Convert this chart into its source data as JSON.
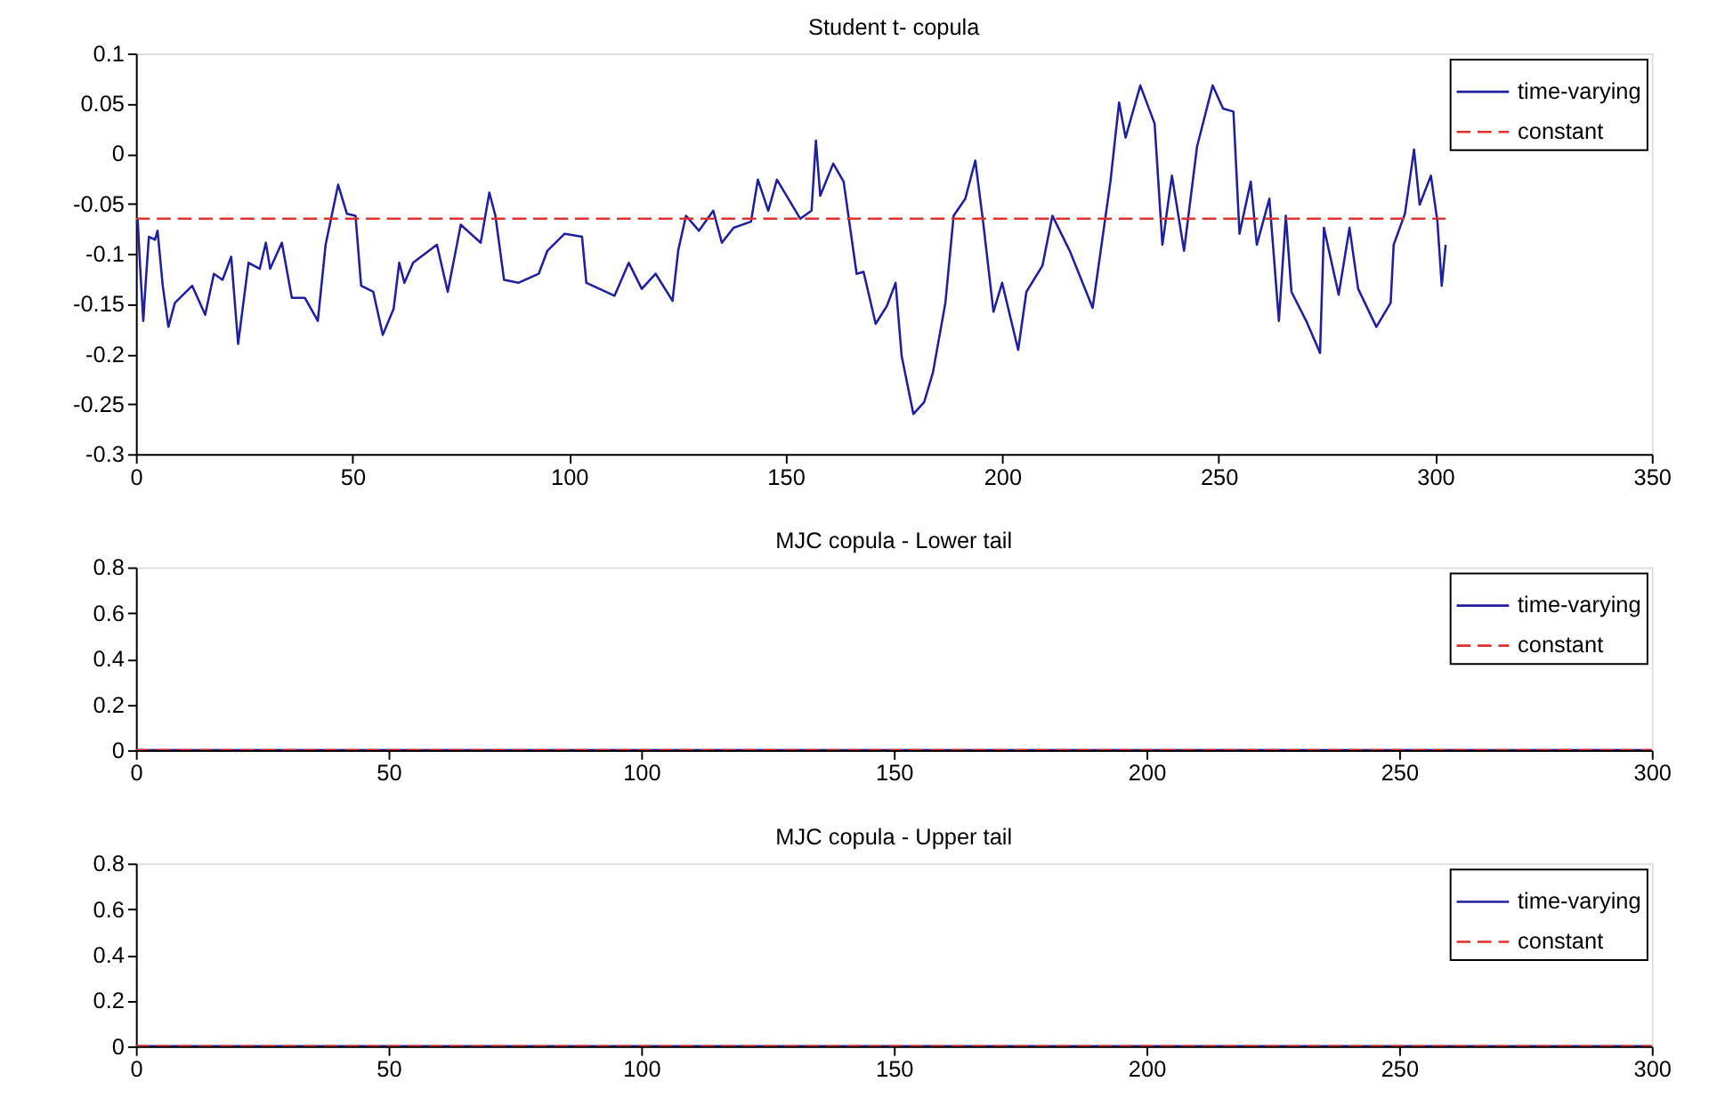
{
  "chart_data": [
    {
      "type": "line",
      "title": "Student t- copula",
      "xlim": [
        0,
        350
      ],
      "xticks": [
        0,
        50,
        100,
        150,
        200,
        250,
        300,
        350
      ],
      "ylim": [
        -0.3,
        0.1
      ],
      "yticks": [
        -0.3,
        -0.25,
        -0.2,
        -0.15,
        -0.1,
        -0.05,
        0,
        0.05,
        0.1
      ],
      "grid": false,
      "legend": "top right",
      "series": [
        {
          "name": "time-varying",
          "color": "#1f1fa0",
          "line_style": "solid",
          "x": [
            0,
            0.4,
            1,
            1.7,
            2.4,
            3,
            4.4,
            5,
            6.2,
            7.5,
            9,
            13,
            16,
            18,
            20,
            22,
            23.6,
            26,
            28.6,
            30,
            31,
            33.7,
            36,
            39,
            42,
            43.8,
            46.7,
            48.7,
            50.7,
            52,
            54.8,
            57,
            59.5,
            60.8,
            62,
            64,
            69.5,
            72,
            75,
            79.6,
            81.6,
            83,
            85,
            88.3,
            93,
            95,
            99,
            103,
            104,
            110.5,
            113.8,
            116.8,
            120,
            123.9,
            125.2,
            127,
            130,
            133.3,
            135.3,
            138,
            142,
            143.6,
            146,
            148,
            153.4,
            156,
            157,
            158,
            161,
            163.4,
            166.4,
            168,
            170.8,
            173.4,
            175.4,
            176.8,
            179.5,
            182,
            184,
            186.9,
            188.8,
            191.5,
            193.8,
            195.6,
            198,
            200,
            203.7,
            205.6,
            209.3,
            211.6,
            215.6,
            220.9,
            225,
            227,
            228.5,
            231.9,
            235.2,
            237,
            239.2,
            242,
            245,
            248.6,
            251,
            253.4,
            254.8,
            257.4,
            258.8,
            261.7,
            263.9,
            265.5,
            266.8,
            270.2,
            273.4,
            274.3,
            277.7,
            280.2,
            282.2,
            286.4,
            289.7,
            290.4,
            293,
            295.1,
            296.4,
            299,
            300.5,
            301.5,
            302.4
          ],
          "values": [
            -0.07,
            -0.065,
            -0.115,
            -0.167,
            -0.12,
            -0.083,
            -0.086,
            -0.077,
            -0.132,
            -0.173,
            -0.149,
            -0.132,
            -0.161,
            -0.12,
            -0.126,
            -0.103,
            -0.19,
            -0.109,
            -0.115,
            -0.089,
            -0.115,
            -0.089,
            -0.144,
            -0.144,
            -0.167,
            -0.091,
            -0.031,
            -0.06,
            -0.062,
            -0.132,
            -0.138,
            -0.181,
            -0.155,
            -0.109,
            -0.129,
            -0.109,
            -0.091,
            -0.138,
            -0.071,
            -0.089,
            -0.039,
            -0.062,
            -0.126,
            -0.129,
            -0.12,
            -0.097,
            -0.08,
            -0.083,
            -0.129,
            -0.142,
            -0.109,
            -0.135,
            -0.12,
            -0.147,
            -0.097,
            -0.062,
            -0.077,
            -0.057,
            -0.089,
            -0.074,
            -0.068,
            -0.026,
            -0.057,
            -0.026,
            -0.065,
            -0.057,
            0.013,
            -0.042,
            -0.01,
            -0.028,
            -0.12,
            -0.118,
            -0.17,
            -0.152,
            -0.129,
            -0.202,
            -0.26,
            -0.248,
            -0.219,
            -0.149,
            -0.062,
            -0.045,
            -0.007,
            -0.068,
            -0.158,
            -0.129,
            -0.196,
            -0.138,
            -0.112,
            -0.062,
            -0.097,
            -0.154,
            -0.028,
            0.051,
            0.016,
            0.068,
            0.03,
            -0.091,
            -0.022,
            -0.097,
            0.007,
            0.068,
            0.045,
            0.042,
            -0.08,
            -0.028,
            -0.091,
            -0.045,
            -0.167,
            -0.062,
            -0.138,
            -0.167,
            -0.199,
            -0.074,
            -0.141,
            -0.074,
            -0.135,
            -0.173,
            -0.149,
            -0.091,
            -0.06,
            0.004,
            -0.051,
            -0.022,
            -0.068,
            -0.132,
            -0.091
          ]
        },
        {
          "name": "constant",
          "color": "#e03030",
          "line_style": "dashed",
          "x": [
            0,
            302.4
          ],
          "values": [
            -0.065,
            -0.065
          ]
        }
      ]
    },
    {
      "type": "line",
      "title": "MJC  copula - Lower tail",
      "xlim": [
        0,
        300
      ],
      "xticks": [
        0,
        50,
        100,
        150,
        200,
        250,
        300
      ],
      "ylim": [
        0,
        0.8
      ],
      "yticks": [
        0,
        0.2,
        0.4,
        0.6,
        0.8
      ],
      "grid": false,
      "legend": "top right",
      "series": [
        {
          "name": "time-varying",
          "color": "#1f1fa0",
          "line_style": "solid",
          "x": [
            0,
            300
          ],
          "values": [
            0,
            0
          ]
        },
        {
          "name": "constant",
          "color": "#e03030",
          "line_style": "dashed",
          "x": [
            0,
            300
          ],
          "values": [
            0,
            0
          ]
        }
      ]
    },
    {
      "type": "line",
      "title": "MJC copula - Upper tail",
      "xlim": [
        0,
        300
      ],
      "xticks": [
        0,
        50,
        100,
        150,
        200,
        250,
        300
      ],
      "ylim": [
        0,
        0.8
      ],
      "yticks": [
        0,
        0.2,
        0.4,
        0.6,
        0.8
      ],
      "grid": false,
      "legend": "top right",
      "series": [
        {
          "name": "time-varying",
          "color": "#1f1fa0",
          "line_style": "solid",
          "x": [
            0,
            300
          ],
          "values": [
            0,
            0
          ]
        },
        {
          "name": "constant",
          "color": "#e03030",
          "line_style": "dashed",
          "x": [
            0,
            300
          ],
          "values": [
            0,
            0
          ]
        }
      ]
    }
  ]
}
